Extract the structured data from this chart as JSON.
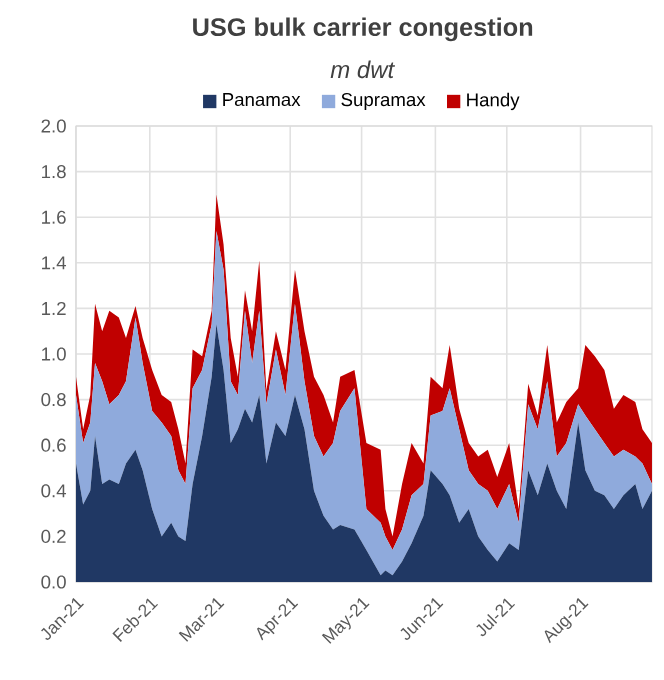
{
  "chart_data": {
    "type": "area",
    "stacked": true,
    "title": "USG bulk carrier congestion",
    "subtitle": "*m dwt*",
    "x": [
      "2021-01-01",
      "2021-01-04",
      "2021-01-07",
      "2021-01-09",
      "2021-01-12",
      "2021-01-15",
      "2021-01-19",
      "2021-01-22",
      "2021-01-26",
      "2021-01-29",
      "2021-02-02",
      "2021-02-06",
      "2021-02-10",
      "2021-02-13",
      "2021-02-16",
      "2021-02-19",
      "2021-02-23",
      "2021-02-27",
      "2021-03-01",
      "2021-03-04",
      "2021-03-07",
      "2021-03-10",
      "2021-03-13",
      "2021-03-16",
      "2021-03-19",
      "2021-03-22",
      "2021-03-26",
      "2021-03-30",
      "2021-04-03",
      "2021-04-07",
      "2021-04-11",
      "2021-04-15",
      "2021-04-19",
      "2021-04-22",
      "2021-04-28",
      "2021-05-03",
      "2021-05-09",
      "2021-05-11",
      "2021-05-14",
      "2021-05-18",
      "2021-05-22",
      "2021-05-27",
      "2021-05-30",
      "2021-06-04",
      "2021-06-07",
      "2021-06-11",
      "2021-06-15",
      "2021-06-19",
      "2021-06-23",
      "2021-06-27",
      "2021-07-02",
      "2021-07-06",
      "2021-07-10",
      "2021-07-14",
      "2021-07-18",
      "2021-07-22",
      "2021-07-26",
      "2021-07-31",
      "2021-08-03",
      "2021-08-07",
      "2021-08-11",
      "2021-08-15",
      "2021-08-19",
      "2021-08-24",
      "2021-08-27",
      "2021-08-31"
    ],
    "series": [
      {
        "name": "Panamax",
        "color": "#203864",
        "values": [
          0.52,
          0.34,
          0.4,
          0.64,
          0.43,
          0.45,
          0.43,
          0.52,
          0.58,
          0.49,
          0.32,
          0.2,
          0.26,
          0.2,
          0.18,
          0.43,
          0.64,
          0.9,
          1.13,
          0.93,
          0.61,
          0.67,
          0.76,
          0.7,
          0.82,
          0.52,
          0.7,
          0.64,
          0.82,
          0.67,
          0.4,
          0.29,
          0.23,
          0.25,
          0.23,
          0.14,
          0.03,
          0.05,
          0.03,
          0.09,
          0.17,
          0.29,
          0.49,
          0.43,
          0.38,
          0.26,
          0.32,
          0.2,
          0.14,
          0.09,
          0.17,
          0.14,
          0.49,
          0.38,
          0.52,
          0.4,
          0.32,
          0.7,
          0.49,
          0.4,
          0.38,
          0.32,
          0.38,
          0.43,
          0.32,
          0.4
        ]
      },
      {
        "name": "Supramax",
        "color": "#8faadc",
        "values": [
          0.3,
          0.27,
          0.3,
          0.32,
          0.45,
          0.33,
          0.39,
          0.36,
          0.58,
          0.47,
          0.43,
          0.5,
          0.38,
          0.29,
          0.25,
          0.42,
          0.29,
          0.23,
          0.41,
          0.44,
          0.27,
          0.15,
          0.43,
          0.26,
          0.37,
          0.26,
          0.32,
          0.18,
          0.4,
          0.21,
          0.24,
          0.26,
          0.38,
          0.5,
          0.62,
          0.18,
          0.23,
          0.15,
          0.11,
          0.14,
          0.21,
          0.14,
          0.24,
          0.32,
          0.47,
          0.41,
          0.17,
          0.23,
          0.26,
          0.23,
          0.26,
          0.12,
          0.29,
          0.29,
          0.36,
          0.15,
          0.29,
          0.08,
          0.24,
          0.27,
          0.23,
          0.23,
          0.2,
          0.12,
          0.2,
          0.03
        ]
      },
      {
        "name": "Handy",
        "color": "#c00000",
        "values": [
          0.08,
          0.06,
          0.12,
          0.26,
          0.22,
          0.41,
          0.34,
          0.19,
          0.05,
          0.11,
          0.18,
          0.12,
          0.15,
          0.18,
          0.09,
          0.17,
          0.06,
          0.06,
          0.16,
          0.11,
          0.19,
          0.08,
          0.09,
          0.14,
          0.22,
          0.06,
          0.08,
          0.11,
          0.15,
          0.22,
          0.26,
          0.27,
          0.09,
          0.15,
          0.08,
          0.29,
          0.32,
          0.12,
          0.06,
          0.2,
          0.23,
          0.09,
          0.17,
          0.1,
          0.19,
          0.09,
          0.12,
          0.12,
          0.18,
          0.14,
          0.18,
          0.06,
          0.09,
          0.06,
          0.16,
          0.15,
          0.18,
          0.07,
          0.31,
          0.32,
          0.32,
          0.21,
          0.24,
          0.24,
          0.15,
          0.18
        ]
      }
    ],
    "xlim": [
      "2021-01-01",
      "2021-08-31"
    ],
    "xticks": [
      {
        "value": "2021-01-01",
        "label": "Jan-21"
      },
      {
        "value": "2021-02-01",
        "label": "Feb-21"
      },
      {
        "value": "2021-03-01",
        "label": "Mar-21"
      },
      {
        "value": "2021-04-01",
        "label": "Apr-21"
      },
      {
        "value": "2021-05-01",
        "label": "May-21"
      },
      {
        "value": "2021-06-01",
        "label": "Jun-21"
      },
      {
        "value": "2021-07-01",
        "label": "Jul-21"
      },
      {
        "value": "2021-08-01",
        "label": "Aug-21"
      }
    ],
    "ylim": [
      0,
      2
    ],
    "yticks": [
      {
        "value": 0,
        "label": "0.0"
      },
      {
        "value": 0.2,
        "label": "0.2"
      },
      {
        "value": 0.4,
        "label": "0.4"
      },
      {
        "value": 0.6,
        "label": "0.6"
      },
      {
        "value": 0.8,
        "label": "0.8"
      },
      {
        "value": 1.0,
        "label": "1.0"
      },
      {
        "value": 1.2,
        "label": "1.2"
      },
      {
        "value": 1.4,
        "label": "1.4"
      },
      {
        "value": 1.6,
        "label": "1.6"
      },
      {
        "value": 1.8,
        "label": "1.8"
      },
      {
        "value": 2.0,
        "label": "2.0"
      }
    ],
    "grid": true,
    "legend": "top"
  }
}
